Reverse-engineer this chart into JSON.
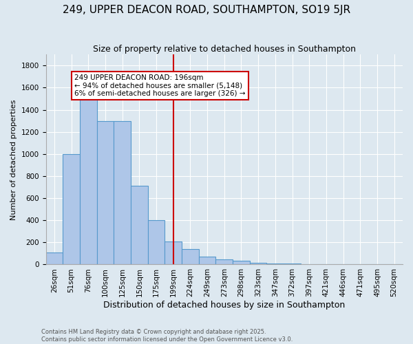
{
  "title": "249, UPPER DEACON ROAD, SOUTHAMPTON, SO19 5JR",
  "subtitle": "Size of property relative to detached houses in Southampton",
  "xlabel": "Distribution of detached houses by size in Southampton",
  "ylabel": "Number of detached properties",
  "bin_labels": [
    "26sqm",
    "51sqm",
    "76sqm",
    "100sqm",
    "125sqm",
    "150sqm",
    "175sqm",
    "199sqm",
    "224sqm",
    "249sqm",
    "273sqm",
    "298sqm",
    "323sqm",
    "347sqm",
    "372sqm",
    "397sqm",
    "421sqm",
    "446sqm",
    "471sqm",
    "495sqm",
    "520sqm"
  ],
  "bin_values": [
    110,
    1000,
    1500,
    1300,
    1300,
    710,
    400,
    210,
    140,
    70,
    45,
    35,
    15,
    10,
    12,
    0,
    0,
    0,
    0,
    0,
    0
  ],
  "bar_color": "#aec6e8",
  "bar_edge_color": "#5599cc",
  "vline_color": "#cc0000",
  "annotation_text": "249 UPPER DEACON ROAD: 196sqm\n← 94% of detached houses are smaller (5,148)\n6% of semi-detached houses are larger (326) →",
  "annotation_box_color": "#cc0000",
  "background_color": "#dde8f0",
  "plot_bg_color": "#dde8f0",
  "footer_text": "Contains HM Land Registry data © Crown copyright and database right 2025.\nContains public sector information licensed under the Open Government Licence v3.0.",
  "ylim": [
    0,
    1900
  ],
  "title_fontsize": 11,
  "subtitle_fontsize": 9,
  "xlabel_fontsize": 9,
  "ylabel_fontsize": 8,
  "tick_fontsize": 7.5,
  "footer_fontsize": 6
}
